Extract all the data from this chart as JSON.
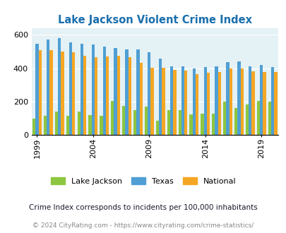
{
  "title": "Lake Jackson Violent Crime Index",
  "years": [
    1999,
    2000,
    2001,
    2002,
    2003,
    2004,
    2005,
    2006,
    2007,
    2008,
    2009,
    2010,
    2011,
    2012,
    2013,
    2014,
    2015,
    2016,
    2017,
    2018,
    2019,
    2020
  ],
  "lake_jackson": [
    100,
    115,
    140,
    115,
    140,
    120,
    115,
    205,
    175,
    148,
    170,
    88,
    148,
    148,
    125,
    130,
    130,
    200,
    162,
    185,
    205,
    200
  ],
  "texas": [
    545,
    570,
    580,
    555,
    545,
    540,
    530,
    520,
    510,
    510,
    495,
    455,
    410,
    410,
    400,
    405,
    410,
    435,
    442,
    410,
    420,
    405
  ],
  "national": [
    507,
    507,
    500,
    493,
    475,
    465,
    470,
    475,
    465,
    432,
    404,
    403,
    388,
    387,
    366,
    373,
    379,
    399,
    396,
    380,
    376,
    379
  ],
  "colors": {
    "lake_jackson": "#8dc63f",
    "texas": "#4f9fd4",
    "national": "#f5a623",
    "background": "#e4f1f5",
    "title": "#1a6fad",
    "subtitle": "#1a1a2e",
    "footer": "#888888"
  },
  "ylabel_ticks": [
    0,
    200,
    400,
    600
  ],
  "ylim": [
    0,
    640
  ],
  "subtitle": "Crime Index corresponds to incidents per 100,000 inhabitants",
  "footer": "© 2024 CityRating.com - https://www.cityrating.com/crime-statistics/",
  "legend": [
    "Lake Jackson",
    "Texas",
    "National"
  ],
  "bar_width": 0.27,
  "tick_years": [
    1999,
    2004,
    2009,
    2014,
    2019
  ]
}
